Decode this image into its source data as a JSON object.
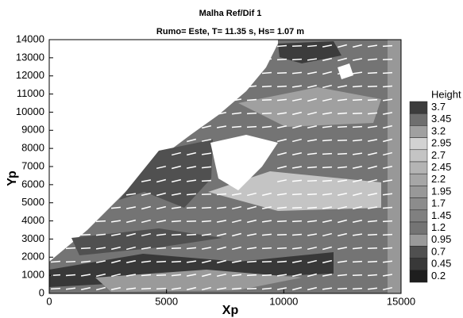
{
  "chart_data": {
    "type": "contour",
    "title": "Malha Ref/Dif 1",
    "subtitle": "Rumo= Este, T= 11.35 s, Hs= 1.07 m",
    "x_label": "Xp",
    "y_label": "Yp",
    "xlim": [
      0,
      15000
    ],
    "ylim": [
      0,
      14000
    ],
    "xticks": [
      0,
      5000,
      10000,
      15000
    ],
    "yticks": [
      0,
      1000,
      2000,
      3000,
      4000,
      5000,
      6000,
      7000,
      8000,
      9000,
      10000,
      11000,
      12000,
      13000,
      14000
    ],
    "colorbar": {
      "title": "Height",
      "levels": [
        3.7,
        3.45,
        3.2,
        2.95,
        2.7,
        2.45,
        2.2,
        1.95,
        1.7,
        1.45,
        1.2,
        0.95,
        0.7,
        0.45,
        0.2
      ],
      "colors": [
        "#3c3c3c",
        "#6e6e6e",
        "#a0a0a0",
        "#d2d2d2",
        "#c4c4c4",
        "#b4b4b4",
        "#a6a6a6",
        "#989898",
        "#8c8c8c",
        "#808080",
        "#747474",
        "#9a9a9a",
        "#505050",
        "#383838",
        "#1e1e1e"
      ]
    }
  }
}
